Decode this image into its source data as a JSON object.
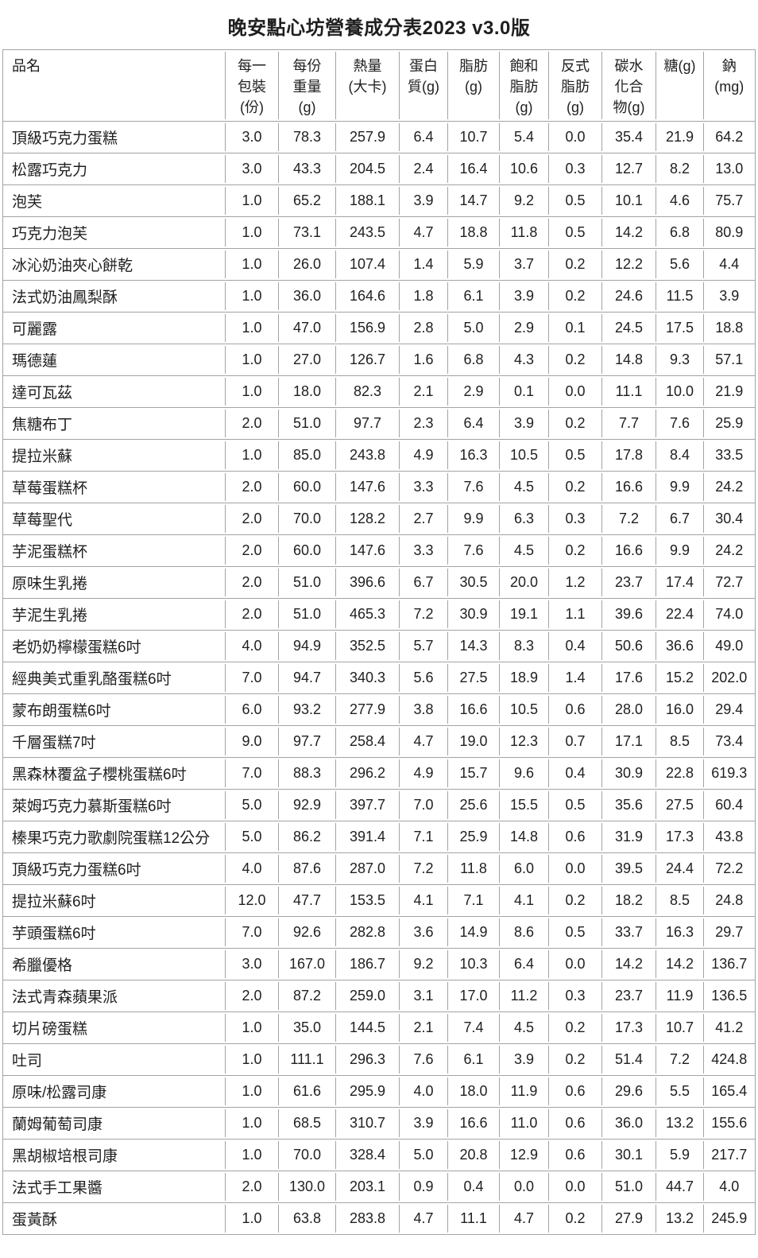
{
  "page": {
    "title": "晚安點心坊營養成分表2023 v3.0版"
  },
  "colors": {
    "border": "#a3a3a3",
    "text": "#1f1f1f",
    "background": "#ffffff"
  },
  "table": {
    "columns": [
      {
        "label": "品名",
        "lines": [
          "品名"
        ]
      },
      {
        "label": "每一包裝(份)",
        "lines": [
          "每一",
          "包裝",
          "(份)"
        ]
      },
      {
        "label": "每份重量(g)",
        "lines": [
          "每份",
          "重量",
          "(g)"
        ]
      },
      {
        "label": "熱量(大卡)",
        "lines": [
          "熱量",
          "(大卡)"
        ]
      },
      {
        "label": "蛋白質(g)",
        "lines": [
          "蛋白",
          "質(g)"
        ]
      },
      {
        "label": "脂肪(g)",
        "lines": [
          "脂肪",
          "(g)"
        ]
      },
      {
        "label": "飽和脂肪(g)",
        "lines": [
          "飽和",
          "脂肪",
          "(g)"
        ]
      },
      {
        "label": "反式脂肪(g)",
        "lines": [
          "反式",
          "脂肪",
          "(g)"
        ]
      },
      {
        "label": "碳水化合物(g)",
        "lines": [
          "碳水",
          "化合",
          "物(g)"
        ]
      },
      {
        "label": "糖(g)",
        "lines": [
          "糖(g)"
        ]
      },
      {
        "label": "鈉(mg)",
        "lines": [
          "鈉",
          "(mg)"
        ]
      }
    ],
    "rows": [
      {
        "name": "頂級巧克力蛋糕",
        "values": [
          "3.0",
          "78.3",
          "257.9",
          "6.4",
          "10.7",
          "5.4",
          "0.0",
          "35.4",
          "21.9",
          "64.2"
        ]
      },
      {
        "name": "松露巧克力",
        "values": [
          "3.0",
          "43.3",
          "204.5",
          "2.4",
          "16.4",
          "10.6",
          "0.3",
          "12.7",
          "8.2",
          "13.0"
        ]
      },
      {
        "name": "泡芙",
        "values": [
          "1.0",
          "65.2",
          "188.1",
          "3.9",
          "14.7",
          "9.2",
          "0.5",
          "10.1",
          "4.6",
          "75.7"
        ]
      },
      {
        "name": "巧克力泡芙",
        "values": [
          "1.0",
          "73.1",
          "243.5",
          "4.7",
          "18.8",
          "11.8",
          "0.5",
          "14.2",
          "6.8",
          "80.9"
        ]
      },
      {
        "name": "冰沁奶油夾心餅乾",
        "values": [
          "1.0",
          "26.0",
          "107.4",
          "1.4",
          "5.9",
          "3.7",
          "0.2",
          "12.2",
          "5.6",
          "4.4"
        ]
      },
      {
        "name": "法式奶油鳳梨酥",
        "values": [
          "1.0",
          "36.0",
          "164.6",
          "1.8",
          "6.1",
          "3.9",
          "0.2",
          "24.6",
          "11.5",
          "3.9"
        ]
      },
      {
        "name": "可麗露",
        "values": [
          "1.0",
          "47.0",
          "156.9",
          "2.8",
          "5.0",
          "2.9",
          "0.1",
          "24.5",
          "17.5",
          "18.8"
        ]
      },
      {
        "name": "瑪德蓮",
        "values": [
          "1.0",
          "27.0",
          "126.7",
          "1.6",
          "6.8",
          "4.3",
          "0.2",
          "14.8",
          "9.3",
          "57.1"
        ]
      },
      {
        "name": "達可瓦茲",
        "values": [
          "1.0",
          "18.0",
          "82.3",
          "2.1",
          "2.9",
          "0.1",
          "0.0",
          "11.1",
          "10.0",
          "21.9"
        ]
      },
      {
        "name": "焦糖布丁",
        "values": [
          "2.0",
          "51.0",
          "97.7",
          "2.3",
          "6.4",
          "3.9",
          "0.2",
          "7.7",
          "7.6",
          "25.9"
        ]
      },
      {
        "name": "提拉米蘇",
        "values": [
          "1.0",
          "85.0",
          "243.8",
          "4.9",
          "16.3",
          "10.5",
          "0.5",
          "17.8",
          "8.4",
          "33.5"
        ]
      },
      {
        "name": "草莓蛋糕杯",
        "values": [
          "2.0",
          "60.0",
          "147.6",
          "3.3",
          "7.6",
          "4.5",
          "0.2",
          "16.6",
          "9.9",
          "24.2"
        ]
      },
      {
        "name": "草莓聖代",
        "values": [
          "2.0",
          "70.0",
          "128.2",
          "2.7",
          "9.9",
          "6.3",
          "0.3",
          "7.2",
          "6.7",
          "30.4"
        ]
      },
      {
        "name": "芋泥蛋糕杯",
        "values": [
          "2.0",
          "60.0",
          "147.6",
          "3.3",
          "7.6",
          "4.5",
          "0.2",
          "16.6",
          "9.9",
          "24.2"
        ]
      },
      {
        "name": "原味生乳捲",
        "values": [
          "2.0",
          "51.0",
          "396.6",
          "6.7",
          "30.5",
          "20.0",
          "1.2",
          "23.7",
          "17.4",
          "72.7"
        ]
      },
      {
        "name": "芋泥生乳捲",
        "values": [
          "2.0",
          "51.0",
          "465.3",
          "7.2",
          "30.9",
          "19.1",
          "1.1",
          "39.6",
          "22.4",
          "74.0"
        ]
      },
      {
        "name": "老奶奶檸檬蛋糕6吋",
        "values": [
          "4.0",
          "94.9",
          "352.5",
          "5.7",
          "14.3",
          "8.3",
          "0.4",
          "50.6",
          "36.6",
          "49.0"
        ]
      },
      {
        "name": "經典美式重乳酪蛋糕6吋",
        "values": [
          "7.0",
          "94.7",
          "340.3",
          "5.6",
          "27.5",
          "18.9",
          "1.4",
          "17.6",
          "15.2",
          "202.0"
        ]
      },
      {
        "name": "蒙布朗蛋糕6吋",
        "values": [
          "6.0",
          "93.2",
          "277.9",
          "3.8",
          "16.6",
          "10.5",
          "0.6",
          "28.0",
          "16.0",
          "29.4"
        ]
      },
      {
        "name": "千層蛋糕7吋",
        "values": [
          "9.0",
          "97.7",
          "258.4",
          "4.7",
          "19.0",
          "12.3",
          "0.7",
          "17.1",
          "8.5",
          "73.4"
        ]
      },
      {
        "name": "黑森林覆盆子櫻桃蛋糕6吋",
        "values": [
          "7.0",
          "88.3",
          "296.2",
          "4.9",
          "15.7",
          "9.6",
          "0.4",
          "30.9",
          "22.8",
          "619.3"
        ]
      },
      {
        "name": "萊姆巧克力慕斯蛋糕6吋",
        "values": [
          "5.0",
          "92.9",
          "397.7",
          "7.0",
          "25.6",
          "15.5",
          "0.5",
          "35.6",
          "27.5",
          "60.4"
        ]
      },
      {
        "name": "榛果巧克力歌劇院蛋糕12公分",
        "values": [
          "5.0",
          "86.2",
          "391.4",
          "7.1",
          "25.9",
          "14.8",
          "0.6",
          "31.9",
          "17.3",
          "43.8"
        ]
      },
      {
        "name": "頂級巧克力蛋糕6吋",
        "values": [
          "4.0",
          "87.6",
          "287.0",
          "7.2",
          "11.8",
          "6.0",
          "0.0",
          "39.5",
          "24.4",
          "72.2"
        ]
      },
      {
        "name": "提拉米蘇6吋",
        "values": [
          "12.0",
          "47.7",
          "153.5",
          "4.1",
          "7.1",
          "4.1",
          "0.2",
          "18.2",
          "8.5",
          "24.8"
        ]
      },
      {
        "name": "芋頭蛋糕6吋",
        "values": [
          "7.0",
          "92.6",
          "282.8",
          "3.6",
          "14.9",
          "8.6",
          "0.5",
          "33.7",
          "16.3",
          "29.7"
        ]
      },
      {
        "name": "希臘優格",
        "values": [
          "3.0",
          "167.0",
          "186.7",
          "9.2",
          "10.3",
          "6.4",
          "0.0",
          "14.2",
          "14.2",
          "136.7"
        ]
      },
      {
        "name": "法式青森蘋果派",
        "values": [
          "2.0",
          "87.2",
          "259.0",
          "3.1",
          "17.0",
          "11.2",
          "0.3",
          "23.7",
          "11.9",
          "136.5"
        ]
      },
      {
        "name": "切片磅蛋糕",
        "values": [
          "1.0",
          "35.0",
          "144.5",
          "2.1",
          "7.4",
          "4.5",
          "0.2",
          "17.3",
          "10.7",
          "41.2"
        ]
      },
      {
        "name": "吐司",
        "values": [
          "1.0",
          "111.1",
          "296.3",
          "7.6",
          "6.1",
          "3.9",
          "0.2",
          "51.4",
          "7.2",
          "424.8"
        ]
      },
      {
        "name": "原味/松露司康",
        "values": [
          "1.0",
          "61.6",
          "295.9",
          "4.0",
          "18.0",
          "11.9",
          "0.6",
          "29.6",
          "5.5",
          "165.4"
        ]
      },
      {
        "name": "蘭姆葡萄司康",
        "values": [
          "1.0",
          "68.5",
          "310.7",
          "3.9",
          "16.6",
          "11.0",
          "0.6",
          "36.0",
          "13.2",
          "155.6"
        ]
      },
      {
        "name": "黑胡椒培根司康",
        "values": [
          "1.0",
          "70.0",
          "328.4",
          "5.0",
          "20.8",
          "12.9",
          "0.6",
          "30.1",
          "5.9",
          "217.7"
        ]
      },
      {
        "name": "法式手工果醬",
        "values": [
          "2.0",
          "130.0",
          "203.1",
          "0.9",
          "0.4",
          "0.0",
          "0.0",
          "51.0",
          "44.7",
          "4.0"
        ]
      },
      {
        "name": "蛋黃酥",
        "values": [
          "1.0",
          "63.8",
          "283.8",
          "4.7",
          "11.1",
          "4.7",
          "0.2",
          "27.9",
          "13.2",
          "245.9"
        ]
      }
    ]
  }
}
